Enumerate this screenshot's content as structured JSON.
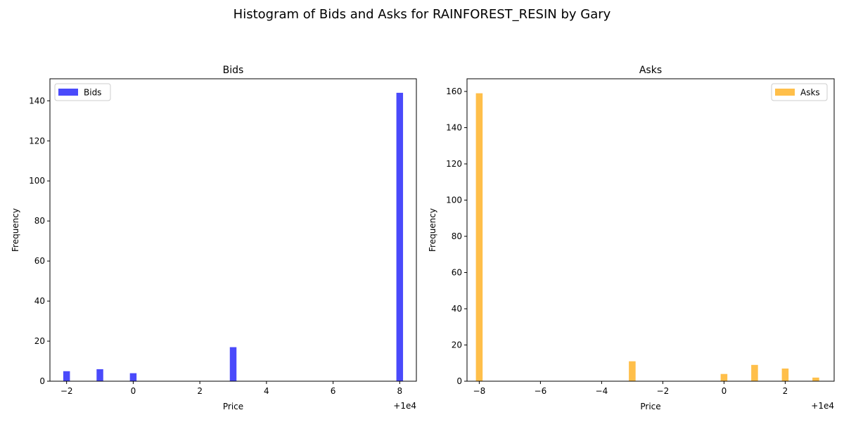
{
  "title": "Histogram of Bids and Asks for RAINFOREST_RESIN by Gary",
  "chart_data": [
    {
      "type": "bar",
      "title": "Bids",
      "xlabel": "Price",
      "ylabel": "Frequency",
      "offset_label": "+1e4",
      "offset": 10000,
      "xlim": [
        9997.5,
        10008.5
      ],
      "ylim": [
        0,
        151
      ],
      "xticks": [
        9998,
        10000,
        10002,
        10004,
        10006,
        10008
      ],
      "xtick_labels": [
        "−2",
        "0",
        "2",
        "4",
        "6",
        "8"
      ],
      "yticks": [
        0,
        20,
        40,
        60,
        80,
        100,
        120,
        140
      ],
      "bin_width": 0.2,
      "series": [
        {
          "name": "Bids",
          "color": "#4a4afb",
          "x": [
            9998,
            9999,
            10000,
            10003,
            10008
          ],
          "values": [
            5,
            6,
            4,
            17,
            144
          ]
        }
      ],
      "legend": "top-left"
    },
    {
      "type": "bar",
      "title": "Asks",
      "xlabel": "Price",
      "ylabel": "Frequency",
      "offset_label": "+1e4",
      "offset": 10000,
      "xlim": [
        9991.6,
        10003.6
      ],
      "ylim": [
        0,
        167
      ],
      "xticks": [
        9992,
        9994,
        9996,
        9998,
        10000,
        10002
      ],
      "xtick_labels": [
        "−8",
        "−6",
        "−4",
        "−2",
        "0",
        "2"
      ],
      "yticks": [
        0,
        20,
        40,
        60,
        80,
        100,
        120,
        140,
        160
      ],
      "bin_width": 0.22,
      "series": [
        {
          "name": "Asks",
          "color": "#ffbf4a",
          "x": [
            9992,
            9997,
            10000,
            10001,
            10002,
            10003
          ],
          "values": [
            159,
            11,
            4,
            9,
            7,
            2
          ]
        }
      ],
      "legend": "top-right"
    }
  ]
}
